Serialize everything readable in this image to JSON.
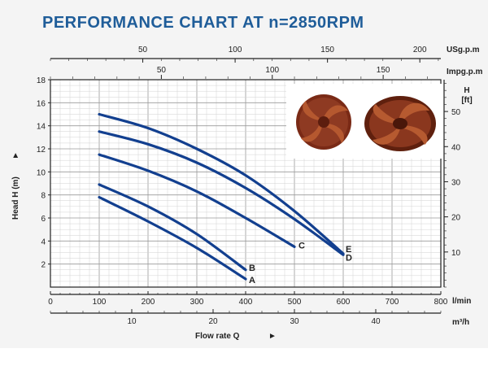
{
  "title": "PERFORMANCE CHART AT n=2850RPM",
  "image_alt": "impeller photos",
  "axes": {
    "usgpm_unit": "USg.p.m",
    "impgpm_unit": "Impg.p.m",
    "lmin_unit": "l/min",
    "m3h_unit": "m³/h",
    "flow_label": "Flow rate Q",
    "head_label": "Head H (m)",
    "ft_label_top": "H",
    "ft_label_bottom": "[ft]",
    "arrow": "►"
  },
  "chart_data": {
    "type": "line",
    "title": "PERFORMANCE CHART AT n=2850RPM",
    "xlabel": "Flow rate Q",
    "x_unit": "l/min",
    "ylabel": "Head H (m)",
    "xlim": [
      0,
      800
    ],
    "ylim": [
      0,
      18
    ],
    "grid": true,
    "x_ticks": [
      0,
      100,
      200,
      300,
      400,
      500,
      600,
      700,
      800
    ],
    "y_ticks": [
      2,
      4,
      6,
      8,
      10,
      12,
      14,
      16,
      18
    ],
    "secondary_axes": {
      "usgpm_ticks": [
        50,
        100,
        150,
        200
      ],
      "impgpm_ticks": [
        50,
        100,
        150
      ],
      "m3h_ticks": [
        10,
        20,
        30,
        40
      ],
      "ft_ticks": [
        10,
        20,
        30,
        40,
        50
      ]
    },
    "series": [
      {
        "name": "A",
        "color": "#123f8f",
        "x": [
          100,
          200,
          300,
          400
        ],
        "y": [
          7.8,
          5.7,
          3.4,
          0.7
        ]
      },
      {
        "name": "B",
        "color": "#123f8f",
        "x": [
          100,
          200,
          300,
          400
        ],
        "y": [
          8.9,
          7.0,
          4.6,
          1.5
        ]
      },
      {
        "name": "C",
        "color": "#123f8f",
        "x": [
          100,
          200,
          300,
          400,
          500
        ],
        "y": [
          11.5,
          10.1,
          8.3,
          6.0,
          3.5
        ]
      },
      {
        "name": "D",
        "color": "#123f8f",
        "x": [
          100,
          200,
          300,
          400,
          500,
          600
        ],
        "y": [
          13.5,
          12.4,
          10.8,
          8.6,
          5.9,
          2.8
        ]
      },
      {
        "name": "E",
        "color": "#123f8f",
        "x": [
          100,
          200,
          300,
          400,
          500,
          600
        ],
        "y": [
          15.0,
          13.8,
          12.0,
          9.7,
          6.6,
          2.9
        ]
      }
    ]
  }
}
